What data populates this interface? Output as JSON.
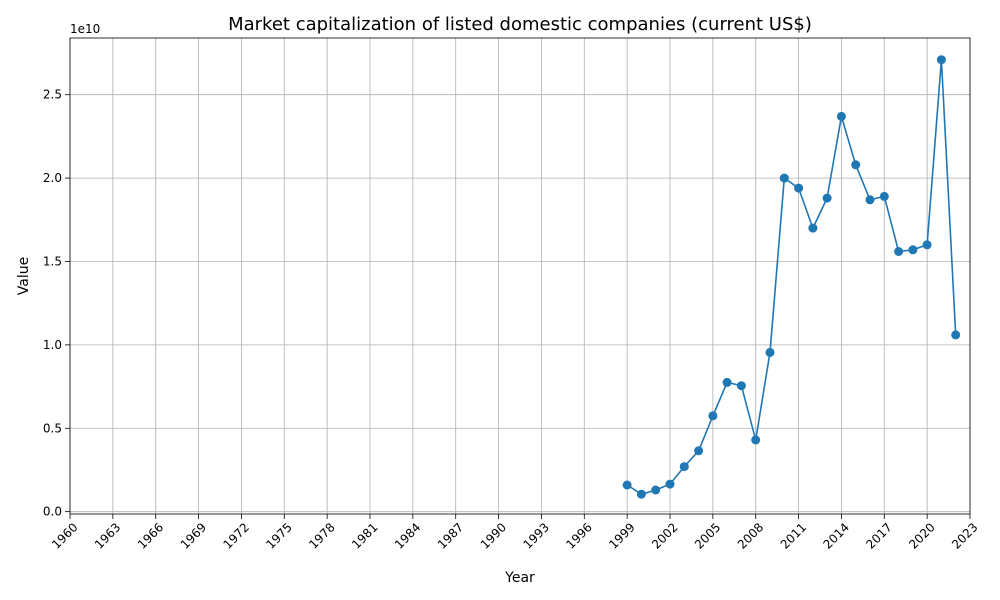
{
  "chart_data": {
    "type": "line",
    "title": "Market capitalization of listed domestic companies (current US$)",
    "xlabel": "Year",
    "ylabel": "Value",
    "y_offset_label": "1e10",
    "xlim": [
      1960,
      2023
    ],
    "ylim": [
      0,
      28400000000.0
    ],
    "x_ticks": [
      "1960",
      "1963",
      "1966",
      "1969",
      "1972",
      "1975",
      "1978",
      "1981",
      "1984",
      "1987",
      "1990",
      "1993",
      "1996",
      "1999",
      "2002",
      "2005",
      "2008",
      "2011",
      "2014",
      "2017",
      "2020",
      "2023"
    ],
    "y_ticks": [
      {
        "value": 0,
        "label": "0.0"
      },
      {
        "value": 5000000000.0,
        "label": "0.5"
      },
      {
        "value": 10000000000.0,
        "label": "1.0"
      },
      {
        "value": 15000000000.0,
        "label": "1.5"
      },
      {
        "value": 20000000000.0,
        "label": "2.0"
      },
      {
        "value": 25000000000.0,
        "label": "2.5"
      }
    ],
    "grid": true,
    "color": "#1f77b4",
    "marker": "circle",
    "x": [
      1999,
      2000,
      2001,
      2002,
      2003,
      2004,
      2005,
      2006,
      2007,
      2008,
      2009,
      2010,
      2011,
      2012,
      2013,
      2014,
      2015,
      2016,
      2017,
      2018,
      2019,
      2020,
      2021,
      2022
    ],
    "values": [
      1600000000.0,
      1050000000.0,
      1300000000.0,
      1650000000.0,
      2700000000.0,
      3650000000.0,
      5750000000.0,
      7750000000.0,
      7550000000.0,
      4300000000.0,
      9550000000.0,
      20000000000.0,
      19400000000.0,
      17000000000.0,
      18800000000.0,
      23700000000.0,
      20800000000.0,
      18700000000.0,
      18900000000.0,
      15600000000.0,
      15700000000.0,
      16000000000.0,
      27100000000.0,
      10600000000.0
    ]
  }
}
